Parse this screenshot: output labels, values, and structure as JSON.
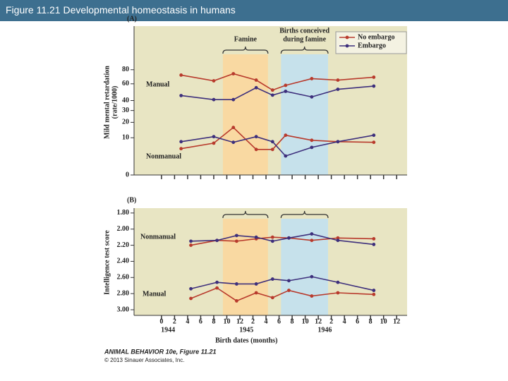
{
  "header": {
    "title": "Figure 11.21  Developmental homeostasis in humans"
  },
  "chart_data": [
    {
      "type": "line",
      "panel": "(A)",
      "y_label": [
        "Mild mental retardation",
        "(rate/1000)"
      ],
      "yscale": "sqrt",
      "ylim": [
        0,
        160
      ],
      "yticks": [
        0,
        10,
        20,
        30,
        40,
        60,
        80
      ],
      "xlim": [
        -4.2,
        37.6
      ],
      "xticks": [
        0,
        2,
        4,
        6,
        8,
        10,
        12,
        14,
        16,
        18,
        20,
        22,
        24,
        26,
        28,
        30,
        32,
        34,
        36
      ],
      "shaded_regions": [
        {
          "label": [
            "Famine"
          ],
          "range": [
            9.4,
            16.3
          ],
          "color": "#fbd79c"
        },
        {
          "label": [
            "Births conceived",
            "during famine"
          ],
          "range": [
            18.3,
            25.5
          ],
          "color": "#bfe1f2"
        }
      ],
      "series": [
        {
          "name": "No embargo",
          "color": "#b83a2c"
        },
        {
          "name": "Embargo",
          "color": "#3d2f7c"
        }
      ],
      "x": [
        3,
        8,
        11,
        14.5,
        17,
        19,
        23,
        27,
        32.5
      ],
      "groups": [
        {
          "label": "Manual",
          "values": [
            [
              72,
              64,
              74,
              65,
              52,
              58,
              67,
              65,
              69
            ],
            [
              45.5,
              41,
              41,
              55,
              46,
              50.5,
              44,
              53,
              57
            ]
          ]
        },
        {
          "label": "Nonmanual",
          "values": [
            [
              5,
              7.3,
              16.3,
              4.7,
              4.7,
              11.4,
              8.7,
              8,
              7.7
            ],
            [
              8,
              10.6,
              7.7,
              10.6,
              8,
              2.6,
              5.5,
              8,
              11.4
            ]
          ]
        }
      ]
    },
    {
      "type": "line",
      "panel": "(B)",
      "y_label": [
        "Intelligence test score"
      ],
      "ylim": [
        1.74,
        3.07
      ],
      "inverted": true,
      "yticks": [
        {
          "value": 1.8,
          "label": "1.80"
        },
        {
          "value": 2.0,
          "label": "2.00"
        },
        {
          "value": 2.2,
          "label": "2.20"
        },
        {
          "value": 2.4,
          "label": "2.40"
        },
        {
          "value": 2.6,
          "label": "2.60"
        },
        {
          "value": 2.8,
          "label": "2.80"
        },
        {
          "value": 3.0,
          "label": "3.00"
        }
      ],
      "xlim": [
        -4.2,
        37.6
      ],
      "xticks": [
        0,
        2,
        4,
        6,
        8,
        10,
        12,
        {
          "value": 14,
          "label": "2"
        },
        {
          "value": 16,
          "label": "4"
        },
        {
          "value": 18,
          "label": "6"
        },
        {
          "value": 20,
          "label": "8"
        },
        {
          "value": 22,
          "label": "10"
        },
        {
          "value": 24,
          "label": "12"
        },
        {
          "value": 26,
          "label": "2"
        },
        {
          "value": 28,
          "label": "4"
        },
        {
          "value": 30,
          "label": "6"
        },
        {
          "value": 32,
          "label": "8"
        },
        {
          "value": 34,
          "label": "10"
        },
        {
          "value": 36,
          "label": "12"
        }
      ],
      "year_labels": [
        "1944",
        "1945",
        "1946"
      ],
      "x_label": "Birth dates (months)",
      "shaded_regions": [
        {
          "range": [
            9.4,
            16.3
          ],
          "color": "#fbd79c"
        },
        {
          "range": [
            18.3,
            25.5
          ],
          "color": "#bfe1f2"
        }
      ],
      "colors": [
        "#b83a2c",
        "#3d2f7c"
      ],
      "x": [
        4.5,
        8.5,
        11.5,
        14.5,
        17,
        19.5,
        23,
        27,
        32.5
      ],
      "groups": [
        {
          "label": "Nonmanual",
          "values": [
            [
              2.2,
              2.14,
              2.15,
              2.12,
              2.1,
              2.11,
              2.14,
              2.11,
              2.12
            ],
            [
              2.15,
              2.14,
              2.08,
              2.1,
              2.15,
              2.11,
              2.06,
              2.14,
              2.19
            ]
          ]
        },
        {
          "label": "Manual",
          "values": [
            [
              2.86,
              2.73,
              2.89,
              2.79,
              2.85,
              2.76,
              2.83,
              2.79,
              2.81
            ],
            [
              2.74,
              2.66,
              2.68,
              2.68,
              2.62,
              2.64,
              2.59,
              2.66,
              2.76
            ]
          ]
        }
      ]
    }
  ],
  "footer": {
    "credit": "ANIMAL BEHAVIOR 10e, Figure 11.21",
    "copyright": "© 2013 Sinauer Associates, Inc."
  }
}
